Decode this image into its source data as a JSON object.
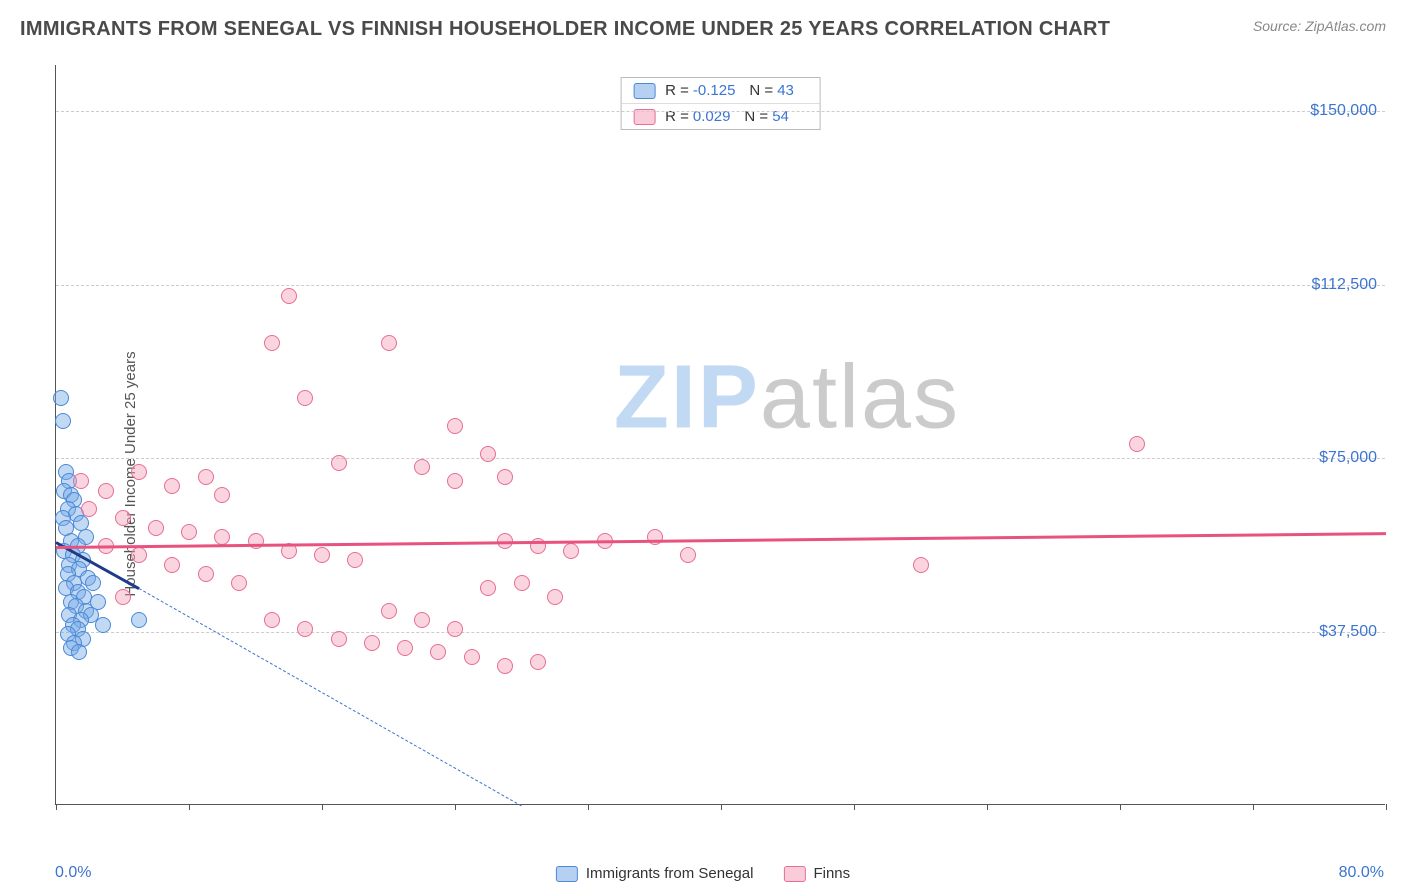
{
  "header": {
    "title": "IMMIGRANTS FROM SENEGAL VS FINNISH HOUSEHOLDER INCOME UNDER 25 YEARS CORRELATION CHART",
    "source": "Source: ZipAtlas.com"
  },
  "axes": {
    "y_label": "Householder Income Under 25 years",
    "x_min_label": "0.0%",
    "x_max_label": "80.0%"
  },
  "chart": {
    "type": "scatter",
    "xlim": [
      0,
      80
    ],
    "ylim": [
      0,
      160000
    ],
    "x_ticks": [
      0,
      8,
      16,
      24,
      32,
      40,
      48,
      56,
      64,
      72,
      80
    ],
    "y_gridlines": [
      37500,
      75000,
      112500,
      150000
    ],
    "y_tick_labels": [
      "$37,500",
      "$75,000",
      "$112,500",
      "$150,000"
    ],
    "colors": {
      "blue_fill": "#78aae6",
      "blue_stroke": "#4a88d8",
      "pink_fill": "#f5a0b9",
      "pink_stroke": "#e86e94",
      "trend_blue": "#1e3a8a",
      "trend_pink": "#e8527e",
      "label_color": "#3b74d1",
      "grid_color": "#cccccc"
    },
    "series": [
      {
        "name": "Immigrants from Senegal",
        "key": "senegal",
        "color_class": "pt-blue",
        "R": "-0.125",
        "N": "43",
        "trend": {
          "x1": 0,
          "y1": 57000,
          "x2": 5,
          "y2": 47000,
          "dash_x2": 28,
          "dash_y2": 0
        },
        "points": [
          [
            0.3,
            88000
          ],
          [
            0.4,
            83000
          ],
          [
            0.6,
            72000
          ],
          [
            0.8,
            70000
          ],
          [
            0.5,
            68000
          ],
          [
            0.9,
            67000
          ],
          [
            1.1,
            66000
          ],
          [
            0.7,
            64000
          ],
          [
            1.2,
            63000
          ],
          [
            0.4,
            62000
          ],
          [
            1.5,
            61000
          ],
          [
            0.6,
            60000
          ],
          [
            1.8,
            58000
          ],
          [
            0.9,
            57000
          ],
          [
            1.3,
            56000
          ],
          [
            0.5,
            55000
          ],
          [
            1.0,
            54000
          ],
          [
            1.6,
            53000
          ],
          [
            0.8,
            52000
          ],
          [
            1.4,
            51000
          ],
          [
            0.7,
            50000
          ],
          [
            1.9,
            49000
          ],
          [
            1.1,
            48000
          ],
          [
            2.2,
            48000
          ],
          [
            0.6,
            47000
          ],
          [
            1.3,
            46000
          ],
          [
            1.7,
            45000
          ],
          [
            0.9,
            44000
          ],
          [
            2.5,
            44000
          ],
          [
            1.2,
            43000
          ],
          [
            1.8,
            42000
          ],
          [
            0.8,
            41000
          ],
          [
            2.1,
            41000
          ],
          [
            1.5,
            40000
          ],
          [
            1.0,
            39000
          ],
          [
            2.8,
            39000
          ],
          [
            1.3,
            38000
          ],
          [
            0.7,
            37000
          ],
          [
            1.6,
            36000
          ],
          [
            1.1,
            35000
          ],
          [
            5.0,
            40000
          ],
          [
            0.9,
            34000
          ],
          [
            1.4,
            33000
          ]
        ]
      },
      {
        "name": "Finns",
        "key": "finns",
        "color_class": "pt-pink",
        "R": "0.029",
        "N": "54",
        "trend": {
          "x1": 0,
          "y1": 56000,
          "x2": 80,
          "y2": 59000
        },
        "points": [
          [
            14,
            110000
          ],
          [
            13,
            100000
          ],
          [
            20,
            100000
          ],
          [
            15,
            88000
          ],
          [
            24,
            82000
          ],
          [
            1.5,
            70000
          ],
          [
            3,
            68000
          ],
          [
            5,
            72000
          ],
          [
            7,
            69000
          ],
          [
            9,
            71000
          ],
          [
            17,
            74000
          ],
          [
            22,
            73000
          ],
          [
            24,
            70000
          ],
          [
            26,
            76000
          ],
          [
            27,
            71000
          ],
          [
            2,
            64000
          ],
          [
            4,
            62000
          ],
          [
            6,
            60000
          ],
          [
            8,
            59000
          ],
          [
            10,
            58000
          ],
          [
            12,
            57000
          ],
          [
            14,
            55000
          ],
          [
            16,
            54000
          ],
          [
            18,
            53000
          ],
          [
            10,
            67000
          ],
          [
            3,
            56000
          ],
          [
            5,
            54000
          ],
          [
            7,
            52000
          ],
          [
            9,
            50000
          ],
          [
            11,
            48000
          ],
          [
            27,
            57000
          ],
          [
            29,
            56000
          ],
          [
            31,
            55000
          ],
          [
            33,
            57000
          ],
          [
            36,
            58000
          ],
          [
            38,
            54000
          ],
          [
            52,
            52000
          ],
          [
            65,
            78000
          ],
          [
            26,
            47000
          ],
          [
            28,
            48000
          ],
          [
            30,
            45000
          ],
          [
            13,
            40000
          ],
          [
            15,
            38000
          ],
          [
            17,
            36000
          ],
          [
            19,
            35000
          ],
          [
            21,
            34000
          ],
          [
            23,
            33000
          ],
          [
            25,
            32000
          ],
          [
            27,
            30000
          ],
          [
            29,
            31000
          ],
          [
            20,
            42000
          ],
          [
            22,
            40000
          ],
          [
            24,
            38000
          ],
          [
            4,
            45000
          ]
        ]
      }
    ]
  },
  "legend_bottom": [
    {
      "label": "Immigrants from Senegal",
      "swatch": "sw-blue"
    },
    {
      "label": "Finns",
      "swatch": "sw-pink"
    }
  ],
  "watermark": {
    "part1": "ZIP",
    "part2": "atlas"
  }
}
